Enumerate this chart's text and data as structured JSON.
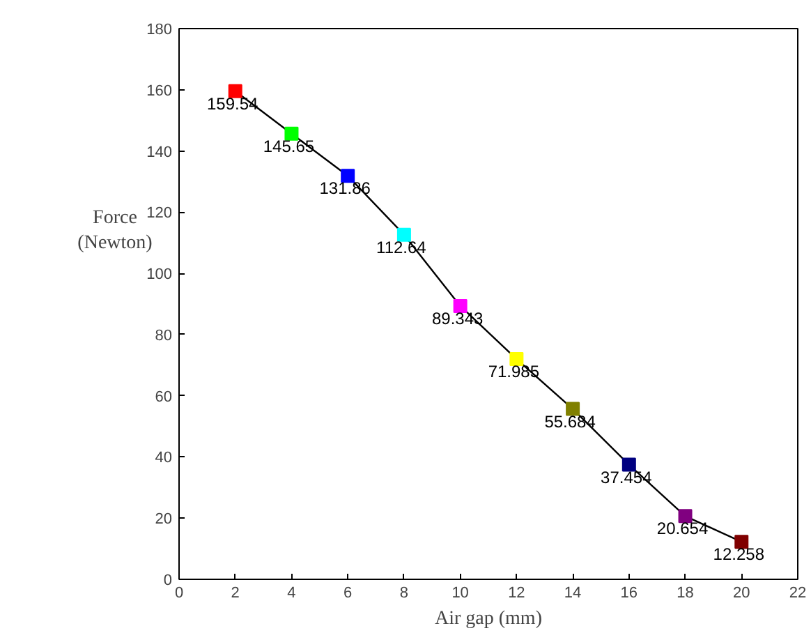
{
  "chart_data": {
    "type": "line",
    "xlabel": "Air gap (mm)",
    "ylabel": "Force (Newton)",
    "x": [
      2,
      4,
      6,
      8,
      10,
      12,
      14,
      16,
      18,
      20
    ],
    "series": [
      {
        "color": "#000000",
        "values": [
          159.54,
          145.65,
          131.86,
          112.64,
          89.343,
          71.985,
          55.684,
          37.454,
          20.654,
          12.258
        ],
        "colors": [
          "#ff0000",
          "#00ff00",
          "#0000ff",
          "#00ffff",
          "#ff00ff",
          "#ffff00",
          "#808000",
          "#000080",
          "#800080",
          "#800000"
        ]
      }
    ],
    "marker": "square",
    "data_labels": true,
    "grid": false,
    "xlim": [
      0,
      22
    ],
    "xticks": [
      0,
      2,
      4,
      6,
      8,
      10,
      12,
      14,
      16,
      18,
      20,
      22
    ],
    "ylim": [
      0,
      180
    ],
    "yticks": [
      0,
      20,
      40,
      60,
      80,
      100,
      120,
      140,
      160,
      180
    ]
  }
}
